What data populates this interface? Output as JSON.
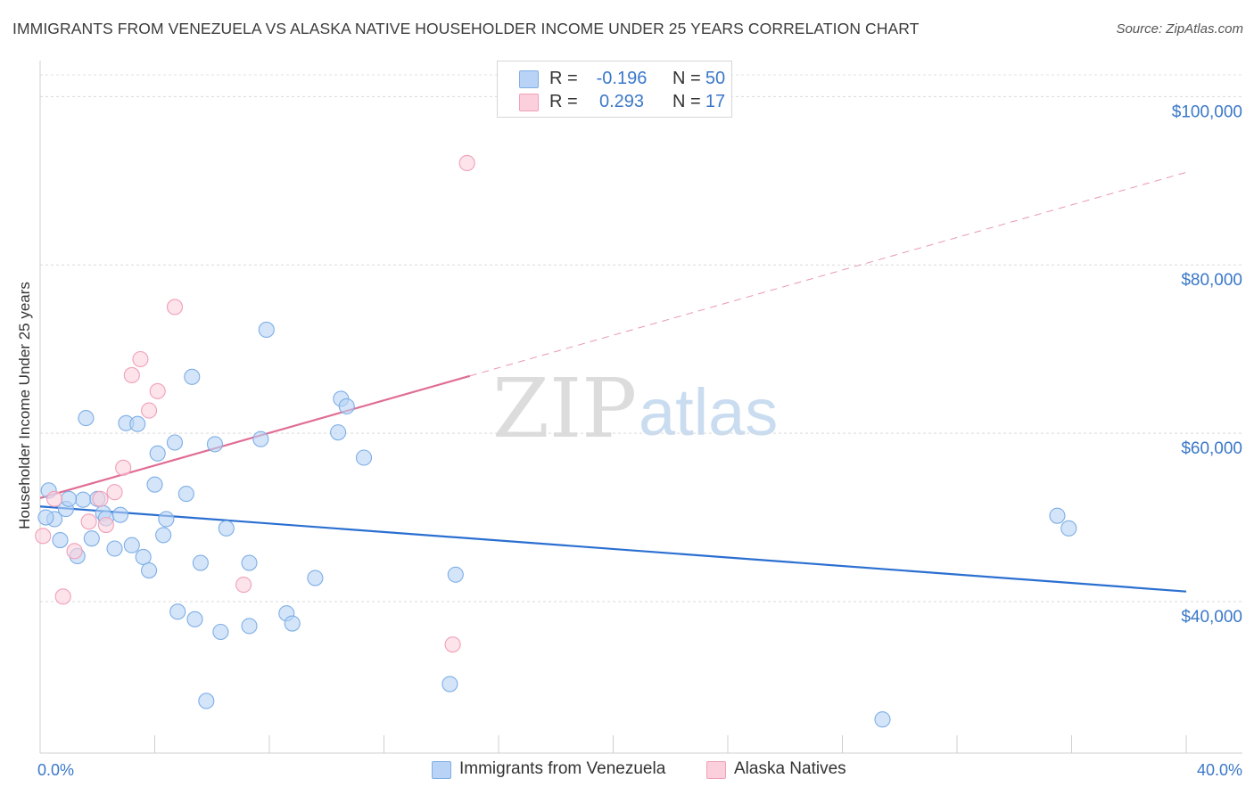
{
  "title": "IMMIGRANTS FROM VENEZUELA VS ALASKA NATIVE HOUSEHOLDER INCOME UNDER 25 YEARS CORRELATION CHART",
  "source": "Source: ZipAtlas.com",
  "watermark": {
    "zip": "ZIP",
    "atlas": "atlas"
  },
  "legend": {
    "rows": [
      {
        "r_label": "R =",
        "r_value": "-0.196",
        "n_label": "N =",
        "n_value": "50",
        "color": "#b8d3f5",
        "border": "#7eaee6"
      },
      {
        "r_label": "R =",
        "r_value": "0.293",
        "n_label": "N =",
        "n_value": "17",
        "color": "#fbd0dc",
        "border": "#f0a0b8"
      }
    ]
  },
  "bottom_legend": [
    {
      "label": "Immigrants from Venezuela",
      "color": "#b8d3f5",
      "border": "#7eaee6"
    },
    {
      "label": "Alaska Natives",
      "color": "#fbd0dc",
      "border": "#f0a0b8"
    }
  ],
  "chart_data": {
    "type": "scatter",
    "ylabel": "Householder Income Under 25 years",
    "xlim": [
      0,
      40
    ],
    "ylim": [
      22000,
      103000
    ],
    "x_ticks": [
      "0.0%",
      "40.0%"
    ],
    "y_ticks": [
      {
        "value": 100000,
        "label": "$100,000"
      },
      {
        "value": 80000,
        "label": "$80,000"
      },
      {
        "value": 60000,
        "label": "$60,000"
      },
      {
        "value": 40000,
        "label": "$40,000"
      }
    ],
    "series": [
      {
        "name": "Immigrants from Venezuela",
        "color": "#7eaee6",
        "fill": "#b8d3f5",
        "trend_color": "#2b6fd1",
        "trend": {
          "x0": 0.0,
          "y0": 51300,
          "x1": 40.0,
          "y1": 41200,
          "dashed_from": null
        },
        "points": [
          [
            0.3,
            53200
          ],
          [
            0.5,
            49800
          ],
          [
            0.7,
            47300
          ],
          [
            0.9,
            51000
          ],
          [
            1.3,
            45400
          ],
          [
            1.5,
            52100
          ],
          [
            1.6,
            61800
          ],
          [
            1.8,
            47500
          ],
          [
            2.0,
            52200
          ],
          [
            2.2,
            50500
          ],
          [
            2.3,
            49900
          ],
          [
            2.6,
            46300
          ],
          [
            2.8,
            50300
          ],
          [
            3.0,
            61200
          ],
          [
            3.2,
            46700
          ],
          [
            3.4,
            61100
          ],
          [
            3.6,
            45300
          ],
          [
            3.8,
            43700
          ],
          [
            4.0,
            53900
          ],
          [
            4.1,
            57600
          ],
          [
            4.3,
            47900
          ],
          [
            4.4,
            49800
          ],
          [
            4.7,
            58900
          ],
          [
            4.8,
            38800
          ],
          [
            5.1,
            52800
          ],
          [
            5.3,
            66700
          ],
          [
            5.4,
            37900
          ],
          [
            5.6,
            44600
          ],
          [
            5.8,
            28200
          ],
          [
            6.1,
            58700
          ],
          [
            6.3,
            36400
          ],
          [
            6.5,
            48700
          ],
          [
            7.3,
            37100
          ],
          [
            7.3,
            44600
          ],
          [
            7.7,
            59300
          ],
          [
            7.9,
            72300
          ],
          [
            8.6,
            38600
          ],
          [
            8.8,
            37400
          ],
          [
            9.6,
            42800
          ],
          [
            10.4,
            60100
          ],
          [
            10.5,
            64100
          ],
          [
            10.7,
            63200
          ],
          [
            11.3,
            57100
          ],
          [
            14.3,
            30200
          ],
          [
            14.5,
            43200
          ],
          [
            29.4,
            26000
          ],
          [
            35.5,
            50200
          ],
          [
            35.9,
            48700
          ],
          [
            0.2,
            50000
          ],
          [
            1.0,
            52200
          ]
        ]
      },
      {
        "name": "Alaska Natives",
        "color": "#f0a0b8",
        "fill": "#fbd0dc",
        "trend_color": "#e06c95",
        "trend": {
          "x0": 0.0,
          "y0": 52300,
          "x1": 40.0,
          "y1": 91000,
          "dashed_from": 15.0
        },
        "points": [
          [
            0.1,
            47800
          ],
          [
            0.5,
            52200
          ],
          [
            0.8,
            40600
          ],
          [
            1.2,
            46000
          ],
          [
            1.7,
            49500
          ],
          [
            2.1,
            52200
          ],
          [
            2.3,
            49100
          ],
          [
            2.6,
            53000
          ],
          [
            2.9,
            55900
          ],
          [
            3.2,
            66900
          ],
          [
            3.5,
            68800
          ],
          [
            3.8,
            62700
          ],
          [
            4.1,
            65000
          ],
          [
            4.7,
            75000
          ],
          [
            7.1,
            42000
          ],
          [
            14.4,
            34900
          ],
          [
            14.9,
            92100
          ]
        ]
      }
    ],
    "grid": true,
    "legend_position": "top-center"
  }
}
